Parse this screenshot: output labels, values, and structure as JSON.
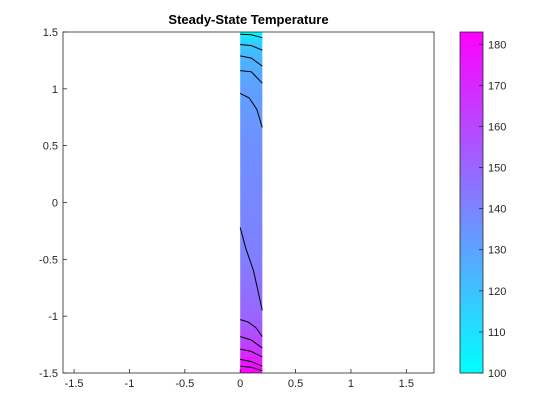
{
  "chart_data": {
    "type": "contour",
    "title": "Steady-State Temperature",
    "xlabel": "",
    "ylabel": "",
    "xlim": [
      -1.6,
      1.75
    ],
    "ylim": [
      -1.5,
      1.5
    ],
    "x_ticks": [
      -1.5,
      -1,
      -0.5,
      0,
      0.5,
      1,
      1.5
    ],
    "y_ticks": [
      -1.5,
      -1,
      -0.5,
      0,
      0.5,
      1,
      1.5
    ],
    "x_tick_labels": [
      "-1.5",
      "-1",
      "-0.5",
      "0",
      "0.5",
      "1",
      "1.5"
    ],
    "y_tick_labels": [
      "-1.5",
      "-1",
      "-0.5",
      "0",
      "0.5",
      "1",
      "1.5"
    ],
    "grid": false,
    "domain": {
      "x": [
        0,
        0.2
      ],
      "y": [
        -1.5,
        1.5
      ]
    },
    "colormap": "cool",
    "colormap_stops": [
      "#00ffff",
      "#ff00ff"
    ],
    "color_limits": [
      100,
      183
    ],
    "field_samples": [
      {
        "y": -1.5,
        "value": 183
      },
      {
        "y": -1.4,
        "value": 175
      },
      {
        "y": -1.25,
        "value": 162
      },
      {
        "y": -1.0,
        "value": 150
      },
      {
        "y": -0.5,
        "value": 142
      },
      {
        "y": 0.0,
        "value": 139
      },
      {
        "y": 0.5,
        "value": 136
      },
      {
        "y": 1.0,
        "value": 131
      },
      {
        "y": 1.25,
        "value": 125
      },
      {
        "y": 1.4,
        "value": 117
      },
      {
        "y": 1.5,
        "value": 100
      }
    ],
    "contours": [
      {
        "points": [
          [
            0.0,
            1.48
          ],
          [
            0.1,
            1.475
          ],
          [
            0.2,
            1.45
          ]
        ]
      },
      {
        "points": [
          [
            0.0,
            1.39
          ],
          [
            0.1,
            1.38
          ],
          [
            0.2,
            1.34
          ]
        ]
      },
      {
        "points": [
          [
            0.0,
            1.29
          ],
          [
            0.1,
            1.27
          ],
          [
            0.2,
            1.2
          ]
        ]
      },
      {
        "points": [
          [
            0.0,
            1.16
          ],
          [
            0.1,
            1.15
          ],
          [
            0.2,
            1.05
          ]
        ]
      },
      {
        "points": [
          [
            0.0,
            0.96
          ],
          [
            0.08,
            0.92
          ],
          [
            0.15,
            0.82
          ],
          [
            0.2,
            0.66
          ]
        ]
      },
      {
        "points": [
          [
            0.0,
            -0.22
          ],
          [
            0.05,
            -0.4
          ],
          [
            0.12,
            -0.6
          ],
          [
            0.2,
            -0.95
          ]
        ]
      },
      {
        "points": [
          [
            0.0,
            -1.03
          ],
          [
            0.07,
            -1.05
          ],
          [
            0.14,
            -1.1
          ],
          [
            0.2,
            -1.18
          ]
        ]
      },
      {
        "points": [
          [
            0.0,
            -1.18
          ],
          [
            0.1,
            -1.21
          ],
          [
            0.2,
            -1.28
          ]
        ]
      },
      {
        "points": [
          [
            0.0,
            -1.29
          ],
          [
            0.1,
            -1.31
          ],
          [
            0.2,
            -1.36
          ]
        ]
      },
      {
        "points": [
          [
            0.0,
            -1.38
          ],
          [
            0.1,
            -1.4
          ],
          [
            0.2,
            -1.44
          ]
        ]
      },
      {
        "points": [
          [
            0.0,
            -1.44
          ],
          [
            0.1,
            -1.45
          ],
          [
            0.2,
            -1.48
          ]
        ]
      }
    ],
    "colorbar": {
      "location": "right",
      "ticks": [
        100,
        110,
        120,
        130,
        140,
        150,
        160,
        170,
        180
      ],
      "tick_labels": [
        "100",
        "110",
        "120",
        "130",
        "140",
        "150",
        "160",
        "170",
        "180"
      ]
    }
  }
}
